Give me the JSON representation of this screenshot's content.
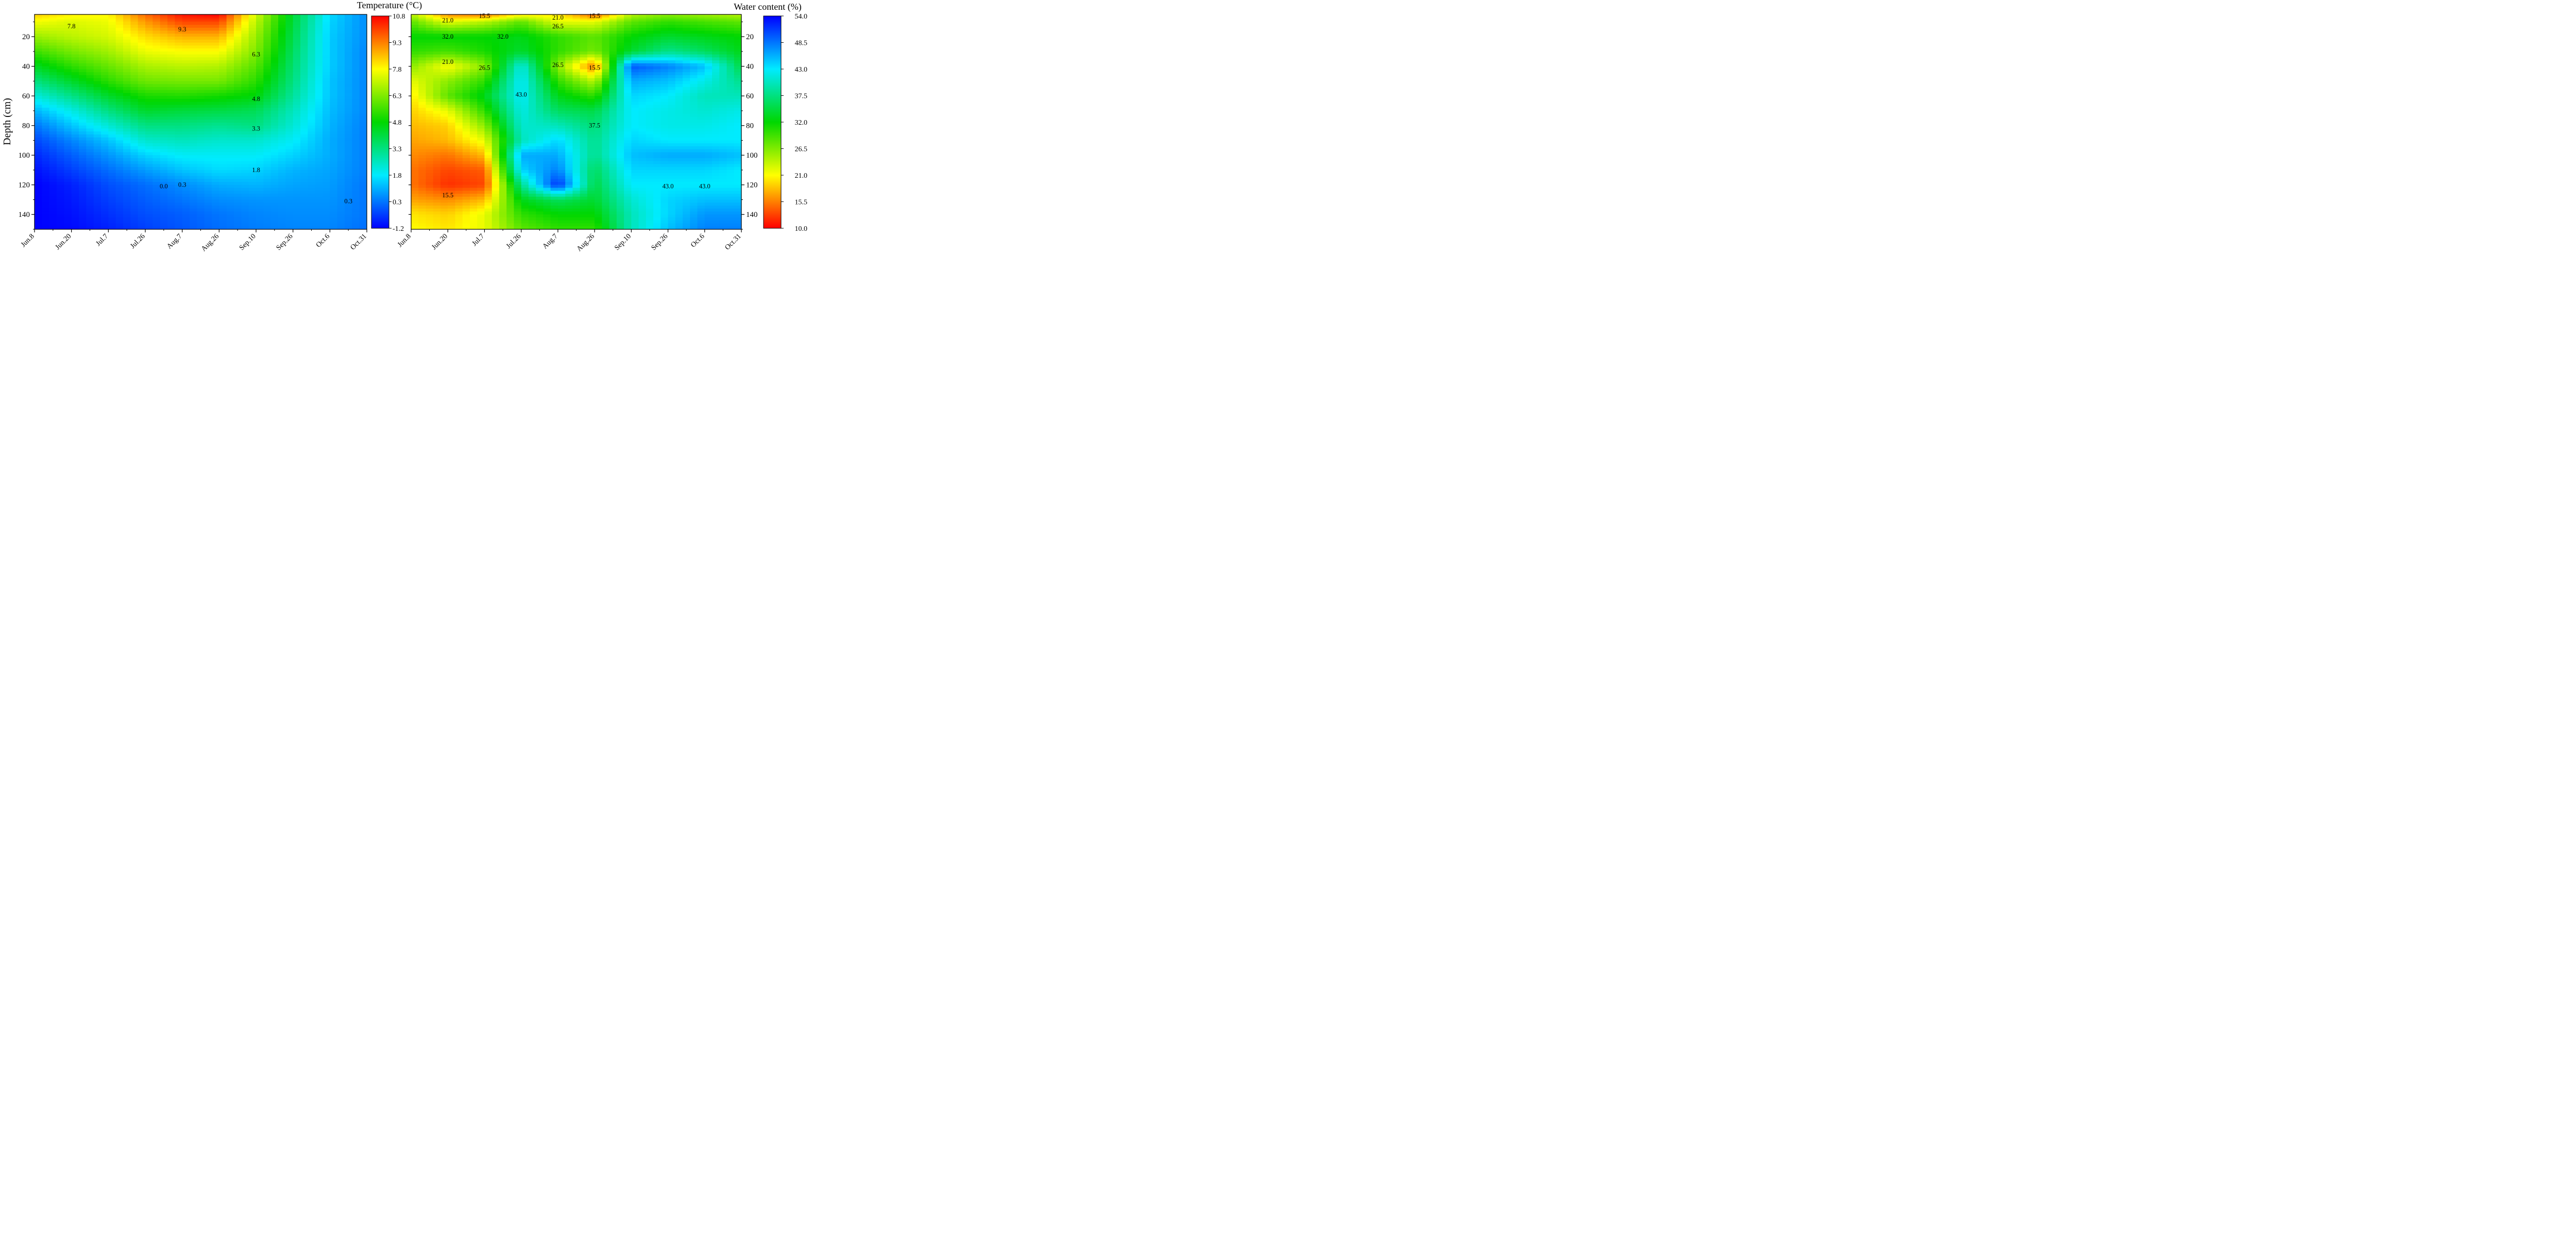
{
  "chart_data": [
    {
      "type": "heatmap",
      "title": "",
      "xlabel": "",
      "ylabel": "Depth (cm)",
      "colorbar_label": "Temperature (°C)",
      "colorbar_ticks": [
        "10.8",
        "9.3",
        "7.8",
        "6.3",
        "4.8",
        "3.3",
        "1.8",
        "0.3",
        "-1.2"
      ],
      "colormap": "blue-cyan-green-yellow-red",
      "x_categories": [
        "Jun.8",
        "Jun.20",
        "Jul.7",
        "Jul.26",
        "Aug.7",
        "Aug.26",
        "Sep.10",
        "Sep.26",
        "Oct.6",
        "Oct.31"
      ],
      "y": [
        5,
        10,
        20,
        30,
        40,
        50,
        60,
        70,
        80,
        90,
        100,
        110,
        120,
        130,
        140,
        150
      ],
      "y_ticks": [
        "20",
        "40",
        "60",
        "80",
        "100",
        "120",
        "140"
      ],
      "ylim": [
        150,
        5
      ],
      "zlim": [
        -1.2,
        10.8
      ],
      "z": [
        [
          8.4,
          8.0,
          7.9,
          9.6,
          10.6,
          10.8,
          7.3,
          4.2,
          1.6,
          0.6
        ],
        [
          7.7,
          7.4,
          7.6,
          9.0,
          10.0,
          10.0,
          7.0,
          4.1,
          1.5,
          0.6
        ],
        [
          6.6,
          7.0,
          7.3,
          8.2,
          8.7,
          8.7,
          6.6,
          3.9,
          1.4,
          0.6
        ],
        [
          5.5,
          6.2,
          6.7,
          7.6,
          7.8,
          7.8,
          6.3,
          3.7,
          1.4,
          0.5
        ],
        [
          4.4,
          5.3,
          6.0,
          6.8,
          7.0,
          6.9,
          5.8,
          3.5,
          1.4,
          0.5
        ],
        [
          3.3,
          4.3,
          5.3,
          6.1,
          6.2,
          6.2,
          5.3,
          3.3,
          1.3,
          0.5
        ],
        [
          2.2,
          3.2,
          4.3,
          5.1,
          5.2,
          5.0,
          4.7,
          3.0,
          1.3,
          0.5
        ],
        [
          1.1,
          2.1,
          3.3,
          4.3,
          4.1,
          4.0,
          3.8,
          2.6,
          1.2,
          0.5
        ],
        [
          0.3,
          1.3,
          2.3,
          3.3,
          3.3,
          3.1,
          3.3,
          2.3,
          1.1,
          0.4
        ],
        [
          -0.3,
          0.5,
          1.3,
          2.4,
          2.6,
          2.4,
          2.4,
          1.9,
          1.0,
          0.4
        ],
        [
          -0.7,
          0.0,
          0.7,
          1.5,
          1.9,
          1.9,
          1.9,
          1.5,
          1.0,
          0.4
        ],
        [
          -1.0,
          -0.4,
          0.2,
          0.8,
          1.3,
          1.6,
          1.5,
          1.1,
          0.9,
          0.4
        ],
        [
          -1.2,
          -0.8,
          -0.2,
          0.2,
          0.6,
          1.0,
          1.1,
          0.9,
          0.8,
          0.3
        ],
        [
          -1.2,
          -0.9,
          -0.4,
          0.0,
          0.3,
          0.6,
          0.7,
          0.7,
          0.7,
          0.3
        ],
        [
          -1.2,
          -1.0,
          -0.6,
          -0.2,
          0.0,
          0.3,
          0.5,
          0.6,
          0.6,
          0.3
        ],
        [
          -1.2,
          -1.1,
          -0.8,
          -0.4,
          -0.1,
          0.2,
          0.4,
          0.5,
          0.5,
          0.2
        ]
      ],
      "contour_labels": [
        {
          "text": "7.8",
          "x": "Jun.20",
          "y": 13
        },
        {
          "text": "9.3",
          "x": "Aug.7",
          "y": 15
        },
        {
          "text": "6.3",
          "x": "Sep.10",
          "y": 32
        },
        {
          "text": "4.8",
          "x": "Sep.10",
          "y": 62
        },
        {
          "text": "3.3",
          "x": "Sep.10",
          "y": 82
        },
        {
          "text": "1.8",
          "x": "Sep.10",
          "y": 110
        },
        {
          "text": "0.0",
          "x": "Jul.26-Aug.7",
          "y": 121
        },
        {
          "text": "0.3",
          "x": "Aug.7",
          "y": 120
        },
        {
          "text": "0.3",
          "x": "Oct.6-Oct.31",
          "y": 131
        }
      ]
    },
    {
      "type": "heatmap",
      "title": "",
      "xlabel": "",
      "ylabel": "",
      "colorbar_label": "Water content (%)",
      "colorbar_ticks": [
        "54.0",
        "48.5",
        "43.0",
        "37.5",
        "32.0",
        "26.5",
        "21.0",
        "15.5",
        "10.0"
      ],
      "colormap": "red-yellow-green-cyan-blue",
      "x_categories": [
        "Jun.8",
        "Jun.20",
        "Jul.7",
        "Jul.26",
        "Aug.7",
        "Aug.26",
        "Sep.10",
        "Sep.26",
        "Oct.6",
        "Oct.31"
      ],
      "y": [
        5,
        10,
        20,
        30,
        40,
        50,
        60,
        70,
        80,
        90,
        100,
        110,
        120,
        130,
        140,
        150
      ],
      "y_ticks": [
        "20",
        "40",
        "60",
        "80",
        "100",
        "120",
        "140"
      ],
      "ylim": [
        150,
        5
      ],
      "zlim": [
        10.0,
        54.0
      ],
      "z": [
        [
          24,
          16,
          15,
          20,
          20,
          14,
          24,
          26,
          25,
          24
        ],
        [
          28,
          22,
          24,
          28,
          22,
          22,
          28,
          30,
          29,
          28
        ],
        [
          32,
          32,
          32,
          33,
          30,
          28,
          32,
          34,
          33,
          32
        ],
        [
          30,
          29,
          31,
          34,
          30,
          27,
          34,
          38,
          36,
          33
        ],
        [
          26,
          21,
          26,
          42,
          26,
          15,
          50,
          48,
          45,
          35
        ],
        [
          22,
          26,
          30,
          43,
          30,
          24,
          46,
          45,
          42,
          38
        ],
        [
          20,
          28,
          33,
          43,
          33,
          30,
          44,
          43,
          40,
          40
        ],
        [
          19,
          22,
          30,
          42,
          36,
          35,
          43,
          42,
          41,
          42
        ],
        [
          18,
          19,
          26,
          41,
          40,
          37,
          43,
          42,
          42,
          43
        ],
        [
          17,
          18,
          22,
          40,
          44,
          38,
          44,
          43,
          43,
          43
        ],
        [
          16,
          15,
          18,
          46,
          46,
          38,
          45,
          46,
          46,
          45
        ],
        [
          15,
          13,
          14,
          44,
          48,
          36,
          44,
          44,
          44,
          43
        ],
        [
          15,
          12,
          13,
          38,
          52,
          35,
          43,
          43,
          43,
          43
        ],
        [
          17,
          16,
          18,
          33,
          36,
          34,
          41,
          44,
          45,
          45
        ],
        [
          20,
          19,
          22,
          30,
          32,
          32,
          40,
          44,
          47,
          47
        ],
        [
          21,
          20,
          22,
          28,
          30,
          30,
          40,
          45,
          48,
          48
        ]
      ],
      "contour_labels": [
        {
          "text": "15.5",
          "x": "Jul.7",
          "y": 6
        },
        {
          "text": "21.0",
          "x": "Aug.7",
          "y": 7
        },
        {
          "text": "15.5",
          "x": "Aug.26",
          "y": 6
        },
        {
          "text": "21.0",
          "x": "Jun.20",
          "y": 9
        },
        {
          "text": "26.5",
          "x": "Aug.7",
          "y": 13
        },
        {
          "text": "32.0",
          "x": "Jun.20",
          "y": 20
        },
        {
          "text": "32.0",
          "x": "Jul.7-Jul.26",
          "y": 20
        },
        {
          "text": "21.0",
          "x": "Jun.20",
          "y": 37
        },
        {
          "text": "26.5",
          "x": "Jul.7",
          "y": 41
        },
        {
          "text": "26.5",
          "x": "Aug.7",
          "y": 39
        },
        {
          "text": "15.5",
          "x": "Aug.26",
          "y": 41
        },
        {
          "text": "43.0",
          "x": "Jul.26",
          "y": 59
        },
        {
          "text": "37.5",
          "x": "Aug.26",
          "y": 80
        },
        {
          "text": "43.0",
          "x": "Sep.26",
          "y": 121
        },
        {
          "text": "43.0",
          "x": "Oct.6",
          "y": 121
        },
        {
          "text": "15.5",
          "x": "Jun.20",
          "y": 127
        }
      ]
    }
  ]
}
